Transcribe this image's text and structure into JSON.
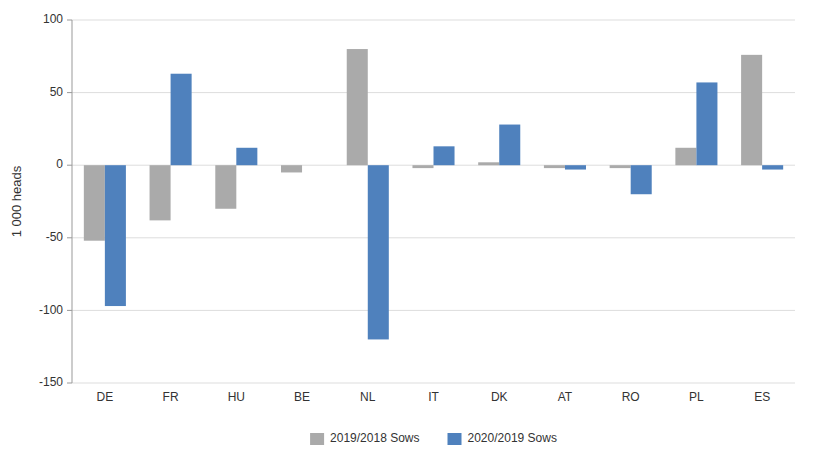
{
  "chart_data": {
    "type": "bar",
    "categories": [
      "DE",
      "FR",
      "HU",
      "BE",
      "NL",
      "IT",
      "DK",
      "AT",
      "RO",
      "PL",
      "ES"
    ],
    "series": [
      {
        "name": "2019/2018 Sows",
        "color": "#aaaaaa",
        "values": [
          -52,
          -38,
          -30,
          -5,
          80,
          -2,
          2,
          -2,
          -2,
          12,
          76
        ]
      },
      {
        "name": "2020/2019 Sows",
        "color": "#4f81bd",
        "values": [
          -97,
          63,
          12,
          0,
          -120,
          13,
          28,
          -3,
          -20,
          57,
          -3
        ]
      }
    ],
    "ylabel": "1 000 heads",
    "ylim": [
      -150,
      100
    ],
    "yticks": [
      -150,
      -100,
      -50,
      0,
      50,
      100
    ],
    "grid": true,
    "legend": "bottom"
  }
}
